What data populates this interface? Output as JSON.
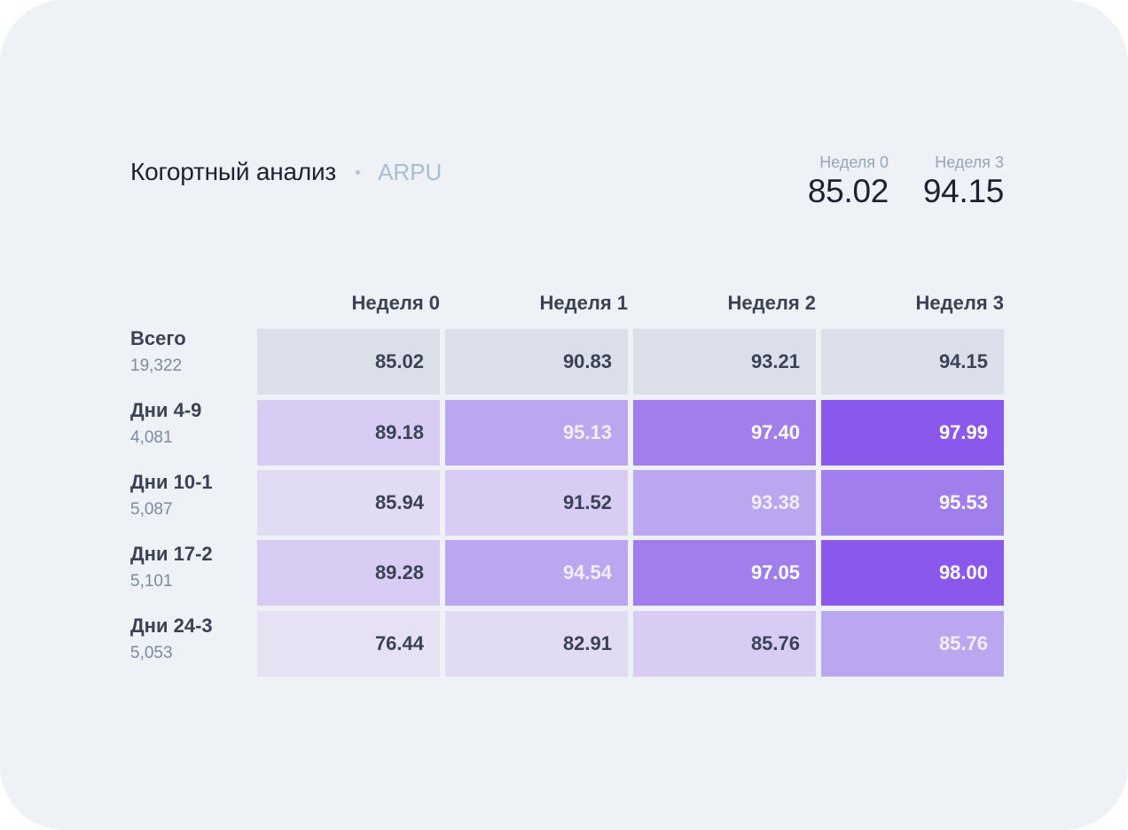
{
  "header": {
    "title": "Когортный анализ",
    "subtitle": "ARPU",
    "kpis": [
      {
        "label": "Неделя 0",
        "value": "85.02"
      },
      {
        "label": "Неделя 3",
        "value": "94.15"
      }
    ]
  },
  "table": {
    "columns": [
      "Неделя 0",
      "Неделя 1",
      "Неделя 2",
      "Неделя 3"
    ],
    "rows": [
      {
        "label": "Всего",
        "count": "19,322",
        "cells": [
          {
            "value": "85.02",
            "bg": "#dadfea",
            "fg": "#3b4254"
          },
          {
            "value": "90.83",
            "bg": "#dadfea",
            "fg": "#3b4254"
          },
          {
            "value": "93.21",
            "bg": "#dadfea",
            "fg": "#3b4254"
          },
          {
            "value": "94.15",
            "bg": "#dadfea",
            "fg": "#3b4254"
          }
        ]
      },
      {
        "label": "Дни 4-9",
        "count": "4,081",
        "cells": [
          {
            "value": "89.18",
            "bg": "#d8ccf5",
            "fg": "#3b4254"
          },
          {
            "value": "95.13",
            "bg": "#bba6f0",
            "fg": "#f2eeff"
          },
          {
            "value": "97.40",
            "bg": "#a07eec",
            "fg": "#ffffff"
          },
          {
            "value": "97.99",
            "bg": "#8a58ea",
            "fg": "#ffffff"
          }
        ]
      },
      {
        "label": "Дни 10-1",
        "count": "5,087",
        "cells": [
          {
            "value": "85.94",
            "bg": "#e1dbf4",
            "fg": "#3b4254"
          },
          {
            "value": "91.52",
            "bg": "#d8ccf5",
            "fg": "#3b4254"
          },
          {
            "value": "93.38",
            "bg": "#bba6f0",
            "fg": "#f2eeff"
          },
          {
            "value": "95.53",
            "bg": "#a07eec",
            "fg": "#ffffff"
          }
        ]
      },
      {
        "label": "Дни 17-2",
        "count": "5,101",
        "cells": [
          {
            "value": "89.28",
            "bg": "#d8ccf5",
            "fg": "#3b4254"
          },
          {
            "value": "94.54",
            "bg": "#bba6f0",
            "fg": "#f2eeff"
          },
          {
            "value": "97.05",
            "bg": "#a07eec",
            "fg": "#ffffff"
          },
          {
            "value": "98.00",
            "bg": "#8a58ea",
            "fg": "#ffffff"
          }
        ]
      },
      {
        "label": "Дни 24-3",
        "count": "5,053",
        "cells": [
          {
            "value": "76.44",
            "bg": "#e6e2f4",
            "fg": "#3b4254"
          },
          {
            "value": "82.91",
            "bg": "#e1dbf4",
            "fg": "#3b4254"
          },
          {
            "value": "85.76",
            "bg": "#d8ccf5",
            "fg": "#3b4254"
          },
          {
            "value": "85.76",
            "bg": "#bba6f0",
            "fg": "#f2eeff"
          }
        ]
      }
    ]
  }
}
